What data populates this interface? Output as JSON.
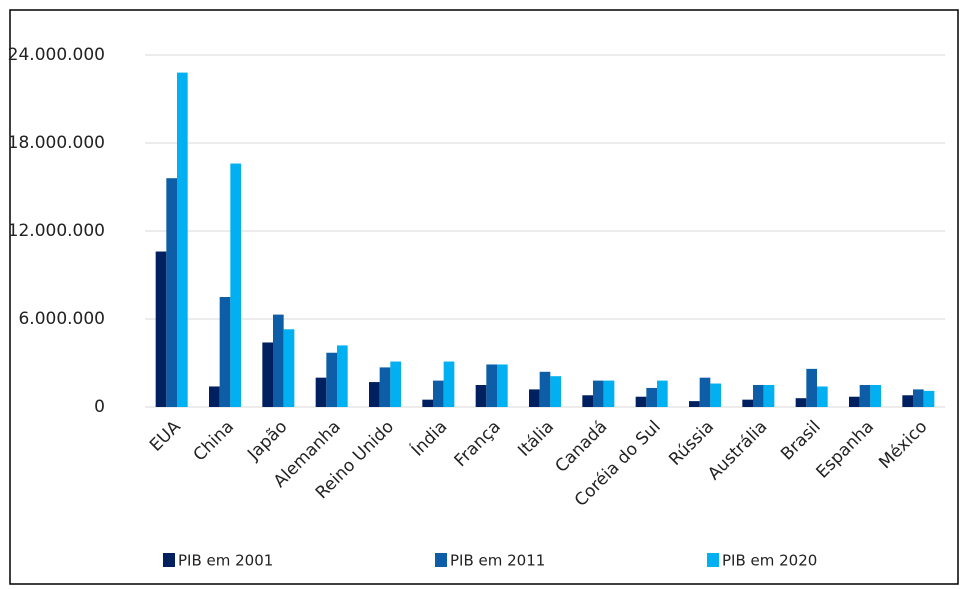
{
  "chart_data": {
    "type": "bar",
    "categories": [
      "EUA",
      "China",
      "Japão",
      "Alemanha",
      "Reino Unido",
      "Índia",
      "França",
      "Itália",
      "Canadá",
      "Coréia do Sul",
      "Rússia",
      "Austrália",
      "Brasil",
      "Espanha",
      "México"
    ],
    "series": [
      {
        "name": "PIB em 2001",
        "color": "#002060",
        "values": [
          10600000,
          1400000,
          4400000,
          2000000,
          1700000,
          500000,
          1500000,
          1200000,
          800000,
          700000,
          400000,
          500000,
          600000,
          700000,
          800000
        ]
      },
      {
        "name": "PIB em 2011",
        "color": "#0d5ea6",
        "values": [
          15600000,
          7500000,
          6300000,
          3700000,
          2700000,
          1800000,
          2900000,
          2400000,
          1800000,
          1300000,
          2000000,
          1500000,
          2600000,
          1500000,
          1200000
        ]
      },
      {
        "name": "PIB em 2020",
        "color": "#00b0f0",
        "values": [
          22800000,
          16600000,
          5300000,
          4200000,
          3100000,
          3100000,
          2900000,
          2100000,
          1800000,
          1800000,
          1600000,
          1500000,
          1400000,
          1500000,
          1100000
        ]
      }
    ],
    "ylim": [
      0,
      24000000
    ],
    "yticks": [
      0,
      {
        "value": 6000000,
        "label": "6.000.000"
      },
      {
        "value": 12000000,
        "label": "12.000.000"
      },
      {
        "value": 18000000,
        "label": "18.000.000"
      },
      {
        "value": 24000000,
        "label": "24.000.000"
      }
    ],
    "grid": true,
    "legend": "bottom"
  }
}
